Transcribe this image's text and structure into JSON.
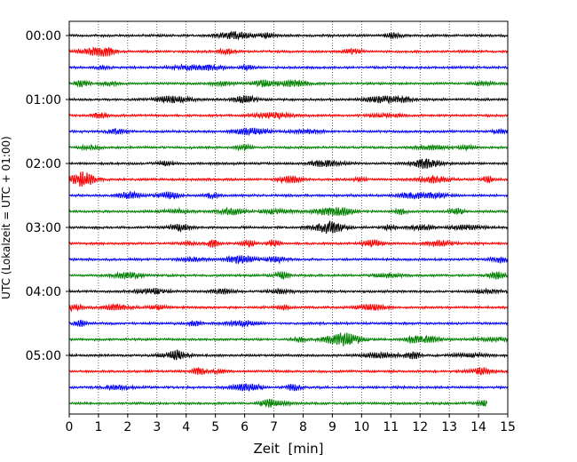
{
  "chart_data": {
    "type": "line",
    "title": "",
    "xlabel": "Zeit  [min]",
    "ylabel": "UTC (Lokalzeit = UTC + 01:00)",
    "xlim": [
      0,
      15
    ],
    "x_ticks": [
      "0",
      "1",
      "2",
      "3",
      "4",
      "5",
      "6",
      "7",
      "8",
      "9",
      "10",
      "11",
      "12",
      "13",
      "14",
      "15"
    ],
    "y_ticks": [
      "00:00",
      "01:00",
      "02:00",
      "03:00",
      "04:00",
      "05:00"
    ],
    "vertical_grid": true,
    "trace_interval_minutes": 15,
    "trace_count": 24,
    "trace_colors": [
      "#000000",
      "#ff0000",
      "#0000ff",
      "#008000"
    ],
    "last_trace_end_minute": 14.3
  }
}
